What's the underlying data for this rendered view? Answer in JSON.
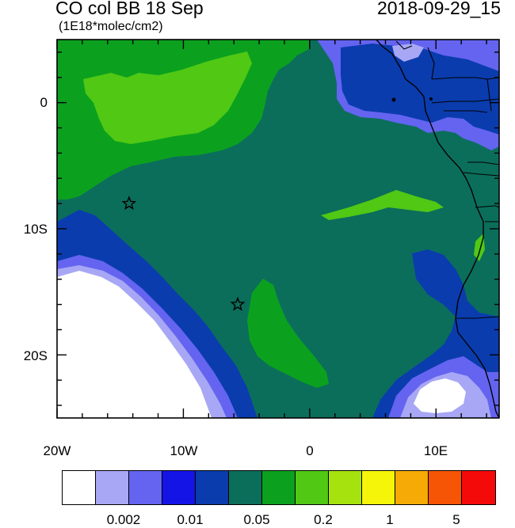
{
  "title": "CO col BB 18 Sep",
  "units": "(1E18*molec/cm2)",
  "timestamp": "2018-09-29_15",
  "lat_labels": [
    "0",
    "10S",
    "20S"
  ],
  "lon_labels": [
    "20W",
    "10W",
    "0",
    "10E"
  ],
  "colorbar": {
    "colors": [
      "#ffffff",
      "#a7a7f5",
      "#6464f0",
      "#1414e6",
      "#0a3cae",
      "#0b6e5b",
      "#0ba11e",
      "#50c814",
      "#a6e20e",
      "#f5f50a",
      "#f5aa05",
      "#f55505",
      "#f50a0a"
    ],
    "labels": [
      "0.002",
      "0.01",
      "0.05",
      "0.2",
      "1",
      "5"
    ]
  },
  "markers": [
    {
      "lon": -14.3,
      "lat": -8.0
    },
    {
      "lon": -5.7,
      "lat": -16.0
    }
  ],
  "map_colors": {
    "background": "#0b6e5b",
    "green": "#0ba11e",
    "lightgreen": "#50c814",
    "darkblue": "#0a3cae",
    "blue": "#1414e6",
    "lightblue": "#6464f0",
    "paleblue": "#a7a7f5",
    "white": "#ffffff"
  }
}
